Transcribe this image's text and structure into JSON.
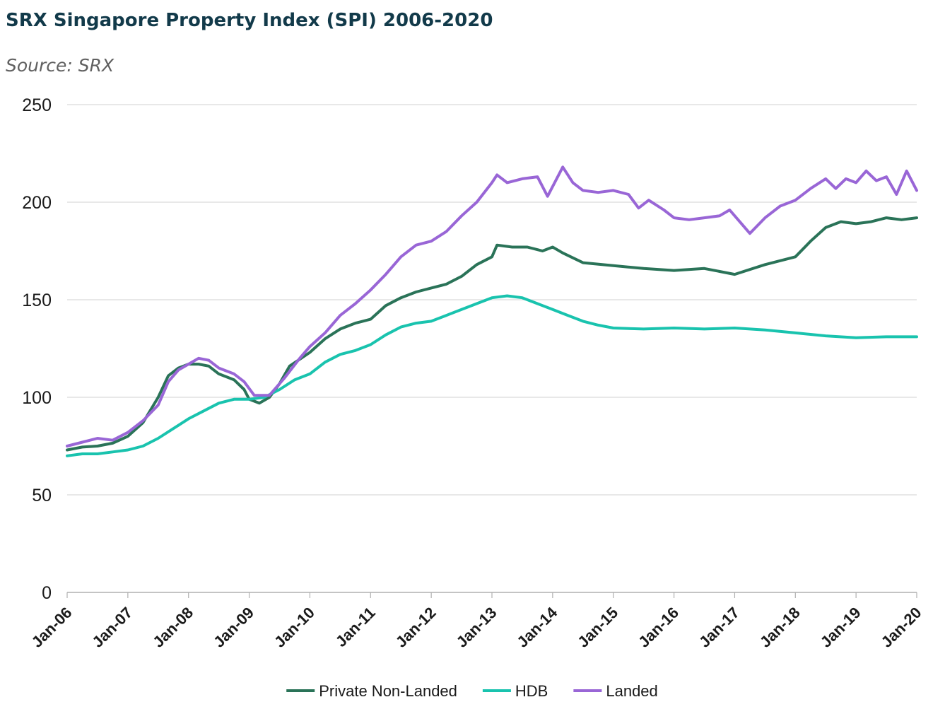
{
  "header": {
    "title": "SRX Singapore Property Index (SPI) 2006-2020",
    "subtitle": "Source: SRX"
  },
  "chart_data": {
    "type": "line",
    "title": "SRX Singapore Property Index (SPI) 2006-2020",
    "subtitle": "Source: SRX",
    "xlabel": "",
    "ylabel": "",
    "ylim": [
      0,
      250
    ],
    "y_ticks": [
      0,
      50,
      100,
      150,
      200,
      250
    ],
    "x_ticks": [
      "Jan-06",
      "Jan-07",
      "Jan-08",
      "Jan-09",
      "Jan-10",
      "Jan-11",
      "Jan-12",
      "Jan-13",
      "Jan-14",
      "Jan-15",
      "Jan-16",
      "Jan-17",
      "Jan-18",
      "Jan-19",
      "Jan-20"
    ],
    "x_range": [
      "Jan-06",
      "Jan-20"
    ],
    "grid": "horizontal",
    "legend_position": "bottom-center",
    "series": [
      {
        "name": "Private Non-Landed",
        "color": "#2a7358",
        "points": [
          [
            "Jan-06",
            73
          ],
          [
            "Apr-06",
            74.5
          ],
          [
            "Jul-06",
            75
          ],
          [
            "Oct-06",
            76.5
          ],
          [
            "Jan-07",
            80
          ],
          [
            "Apr-07",
            87
          ],
          [
            "Jul-07",
            100
          ],
          [
            "Sep-07",
            111
          ],
          [
            "Nov-07",
            115
          ],
          [
            "Jan-08",
            117
          ],
          [
            "Mar-08",
            117
          ],
          [
            "May-08",
            116
          ],
          [
            "Jul-08",
            112
          ],
          [
            "Oct-08",
            109
          ],
          [
            "Dec-08",
            104
          ],
          [
            "Jan-09",
            99
          ],
          [
            "Mar-09",
            97
          ],
          [
            "May-09",
            100
          ],
          [
            "Jul-09",
            107
          ],
          [
            "Sep-09",
            116
          ],
          [
            "Jan-10",
            123
          ],
          [
            "Apr-10",
            130
          ],
          [
            "Jul-10",
            135
          ],
          [
            "Oct-10",
            138
          ],
          [
            "Jan-11",
            140
          ],
          [
            "Apr-11",
            147
          ],
          [
            "Jul-11",
            151
          ],
          [
            "Oct-11",
            154
          ],
          [
            "Jan-12",
            156
          ],
          [
            "Apr-12",
            158
          ],
          [
            "Jul-12",
            162
          ],
          [
            "Oct-12",
            168
          ],
          [
            "Jan-13",
            172
          ],
          [
            "Feb-13",
            178
          ],
          [
            "May-13",
            177
          ],
          [
            "Aug-13",
            177
          ],
          [
            "Nov-13",
            175
          ],
          [
            "Jan-14",
            177
          ],
          [
            "Mar-14",
            174
          ],
          [
            "Jul-14",
            169
          ],
          [
            "Jan-15",
            167.5
          ],
          [
            "Jul-15",
            166
          ],
          [
            "Jan-16",
            165
          ],
          [
            "Jul-16",
            166
          ],
          [
            "Jan-17",
            163
          ],
          [
            "Jul-17",
            168
          ],
          [
            "Jan-18",
            172
          ],
          [
            "Apr-18",
            180
          ],
          [
            "Jul-18",
            187
          ],
          [
            "Oct-18",
            190
          ],
          [
            "Jan-19",
            189
          ],
          [
            "Apr-19",
            190
          ],
          [
            "Jul-19",
            192
          ],
          [
            "Oct-19",
            191
          ],
          [
            "Jan-20",
            192
          ]
        ]
      },
      {
        "name": "HDB",
        "color": "#19c3ae",
        "points": [
          [
            "Jan-06",
            70
          ],
          [
            "Apr-06",
            71
          ],
          [
            "Jul-06",
            71
          ],
          [
            "Oct-06",
            72
          ],
          [
            "Jan-07",
            73
          ],
          [
            "Apr-07",
            75
          ],
          [
            "Jul-07",
            79
          ],
          [
            "Oct-07",
            84
          ],
          [
            "Jan-08",
            89
          ],
          [
            "Apr-08",
            93
          ],
          [
            "Jul-08",
            97
          ],
          [
            "Oct-08",
            99
          ],
          [
            "Jan-09",
            99
          ],
          [
            "Apr-09",
            100
          ],
          [
            "Jul-09",
            104
          ],
          [
            "Oct-09",
            109
          ],
          [
            "Jan-10",
            112
          ],
          [
            "Apr-10",
            118
          ],
          [
            "Jul-10",
            122
          ],
          [
            "Oct-10",
            124
          ],
          [
            "Jan-11",
            127
          ],
          [
            "Apr-11",
            132
          ],
          [
            "Jul-11",
            136
          ],
          [
            "Oct-11",
            138
          ],
          [
            "Jan-12",
            139
          ],
          [
            "Apr-12",
            142
          ],
          [
            "Jul-12",
            145
          ],
          [
            "Oct-12",
            148
          ],
          [
            "Jan-13",
            151
          ],
          [
            "Apr-13",
            152
          ],
          [
            "Jul-13",
            151
          ],
          [
            "Oct-13",
            148
          ],
          [
            "Jan-14",
            145
          ],
          [
            "Apr-14",
            142
          ],
          [
            "Jul-14",
            139
          ],
          [
            "Oct-14",
            137
          ],
          [
            "Jan-15",
            135.5
          ],
          [
            "Jul-15",
            135
          ],
          [
            "Jan-16",
            135.5
          ],
          [
            "Jul-16",
            135
          ],
          [
            "Jan-17",
            135.5
          ],
          [
            "Jul-17",
            134.5
          ],
          [
            "Jan-18",
            133
          ],
          [
            "Jul-18",
            131.5
          ],
          [
            "Jan-19",
            130.5
          ],
          [
            "Jul-19",
            131
          ],
          [
            "Jan-20",
            131
          ]
        ]
      },
      {
        "name": "Landed",
        "color": "#9966d6",
        "points": [
          [
            "Jan-06",
            75
          ],
          [
            "Apr-06",
            77
          ],
          [
            "Jul-06",
            79
          ],
          [
            "Oct-06",
            78
          ],
          [
            "Jan-07",
            82
          ],
          [
            "Apr-07",
            88
          ],
          [
            "Jul-07",
            96
          ],
          [
            "Sep-07",
            108
          ],
          [
            "Nov-07",
            114
          ],
          [
            "Jan-08",
            117
          ],
          [
            "Mar-08",
            120
          ],
          [
            "May-08",
            119
          ],
          [
            "Jul-08",
            115
          ],
          [
            "Oct-08",
            112
          ],
          [
            "Dec-08",
            108
          ],
          [
            "Feb-09",
            101
          ],
          [
            "May-09",
            101
          ],
          [
            "Aug-09",
            110
          ],
          [
            "Nov-09",
            120
          ],
          [
            "Jan-10",
            126
          ],
          [
            "Apr-10",
            133
          ],
          [
            "Jul-10",
            142
          ],
          [
            "Oct-10",
            148
          ],
          [
            "Jan-11",
            155
          ],
          [
            "Apr-11",
            163
          ],
          [
            "Jul-11",
            172
          ],
          [
            "Oct-11",
            178
          ],
          [
            "Jan-12",
            180
          ],
          [
            "Apr-12",
            185
          ],
          [
            "Jul-12",
            193
          ],
          [
            "Oct-12",
            200
          ],
          [
            "Jan-13",
            210
          ],
          [
            "Feb-13",
            214
          ],
          [
            "Apr-13",
            210
          ],
          [
            "Jul-13",
            212
          ],
          [
            "Oct-13",
            213
          ],
          [
            "Dec-13",
            203
          ],
          [
            "Mar-14",
            218
          ],
          [
            "May-14",
            210
          ],
          [
            "Jul-14",
            206
          ],
          [
            "Oct-14",
            205
          ],
          [
            "Jan-15",
            206
          ],
          [
            "Apr-15",
            204
          ],
          [
            "Jun-15",
            197
          ],
          [
            "Aug-15",
            201
          ],
          [
            "Nov-15",
            196
          ],
          [
            "Jan-16",
            192
          ],
          [
            "Apr-16",
            191
          ],
          [
            "Jul-16",
            192
          ],
          [
            "Oct-16",
            193
          ],
          [
            "Dec-16",
            196
          ],
          [
            "Feb-17",
            190
          ],
          [
            "Apr-17",
            184
          ],
          [
            "Jul-17",
            192
          ],
          [
            "Oct-17",
            198
          ],
          [
            "Jan-18",
            201
          ],
          [
            "Apr-18",
            207
          ],
          [
            "Jul-18",
            212
          ],
          [
            "Sep-18",
            207
          ],
          [
            "Nov-18",
            212
          ],
          [
            "Jan-19",
            210
          ],
          [
            "Mar-19",
            216
          ],
          [
            "May-19",
            211
          ],
          [
            "Jul-19",
            213
          ],
          [
            "Sep-19",
            204
          ],
          [
            "Nov-19",
            216
          ],
          [
            "Jan-20",
            206
          ]
        ]
      }
    ]
  }
}
